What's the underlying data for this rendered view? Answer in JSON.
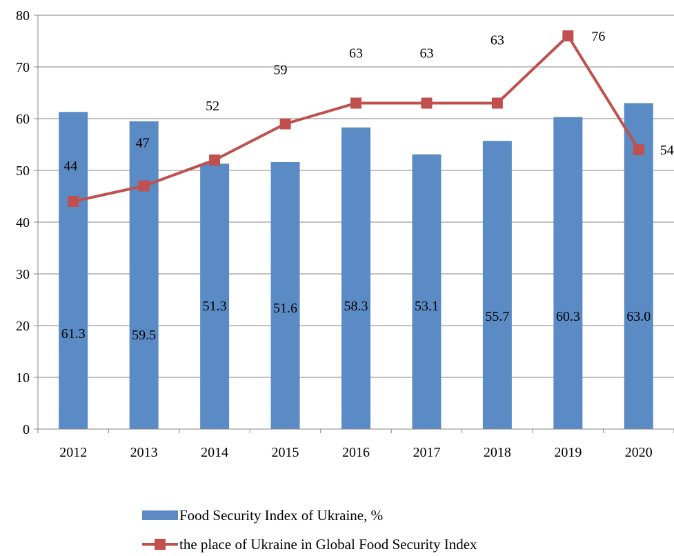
{
  "chart_data": {
    "type": "bar",
    "categories": [
      "2012",
      "2013",
      "2014",
      "2015",
      "2016",
      "2017",
      "2018",
      "2019",
      "2020"
    ],
    "ylim": [
      0,
      80
    ],
    "yticks": [
      0,
      10,
      20,
      30,
      40,
      50,
      60,
      70,
      80
    ],
    "grid": true,
    "legend_position": "bottom",
    "series": [
      {
        "name": "Food Security Index of Ukraine, %",
        "type": "bar",
        "color": "#5B8BC5",
        "values": [
          61.3,
          59.5,
          51.3,
          51.6,
          58.3,
          53.1,
          55.7,
          60.3,
          63.0
        ],
        "labels": [
          "61.3",
          "59.5",
          "51.3",
          "51.6",
          "58.3",
          "53.1",
          "55.7",
          "60.3",
          "63.0"
        ]
      },
      {
        "name": "the place of Ukraine in Global Food Security Index",
        "type": "line",
        "marker": "square",
        "color": "#C0504D",
        "values": [
          44,
          47,
          52,
          59,
          63,
          63,
          63,
          76,
          54
        ],
        "labels": [
          "44",
          "47",
          "52",
          "59",
          "63",
          "63",
          "63",
          "76",
          "54"
        ]
      }
    ]
  }
}
